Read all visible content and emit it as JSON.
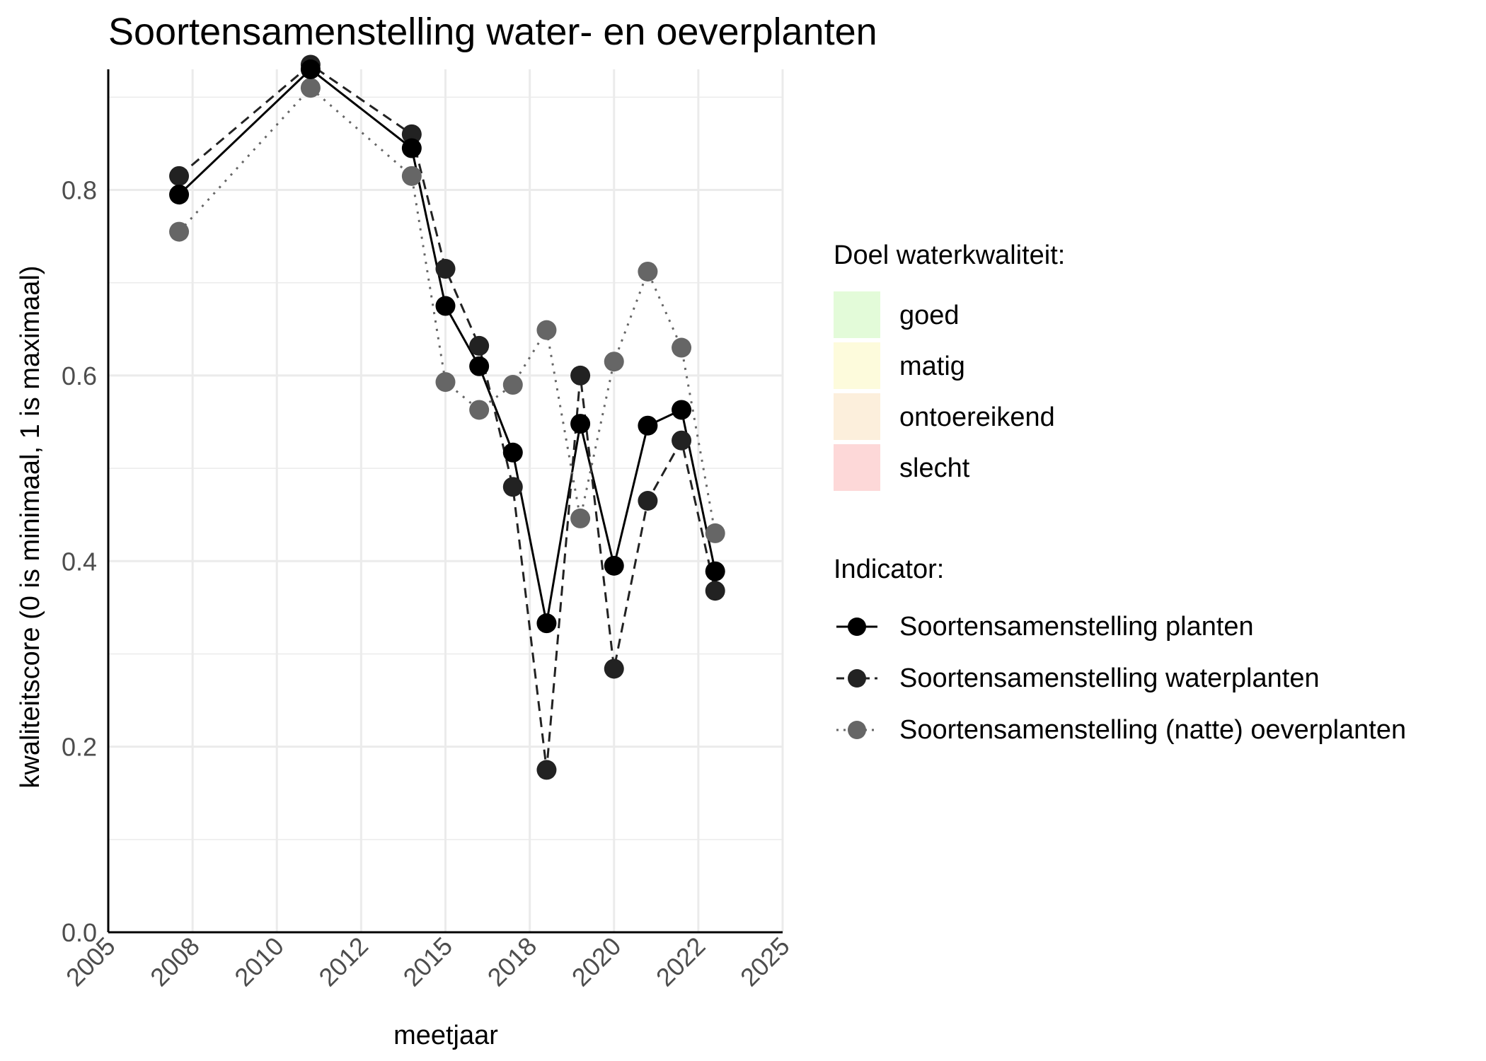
{
  "chart_data": {
    "type": "line",
    "title": "Soortensamenstelling water- en oeverplanten",
    "xlabel": "meetjaar",
    "ylabel": "kwaliteitscore (0 is minimaal, 1 is maximaal)",
    "xlim": [
      2005,
      2025
    ],
    "ylim": [
      0,
      0.93
    ],
    "x_ticks": [
      "2005",
      "2008",
      "2010",
      "2012",
      "2015",
      "2018",
      "2020",
      "2022",
      "2025"
    ],
    "y_ticks": [
      "0.0",
      "0.2",
      "0.4",
      "0.6",
      "0.8"
    ],
    "grid": true,
    "legend_position": "right",
    "target_legend": {
      "title": "Doel waterkwaliteit:",
      "items": [
        {
          "label": "goed",
          "color": "#e3fbd9"
        },
        {
          "label": "matig",
          "color": "#fdfbdc"
        },
        {
          "label": "ontoereikend",
          "color": "#fcefdc"
        },
        {
          "label": "slecht",
          "color": "#fdd8d8"
        }
      ]
    },
    "indicator_legend_title": "Indicator:",
    "series": [
      {
        "name": "Soortensamenstelling planten",
        "color": "#000000",
        "linestyle": "solid",
        "x": [
          2007.1,
          2011.0,
          2014.0,
          2015.0,
          2016.0,
          2017.0,
          2018.0,
          2019.0,
          2020.0,
          2021.0,
          2022.0,
          2023.0
        ],
        "y": [
          0.795,
          0.93,
          0.845,
          0.675,
          0.61,
          0.517,
          0.333,
          0.548,
          0.395,
          0.546,
          0.563,
          0.389
        ]
      },
      {
        "name": "Soortensamenstelling waterplanten",
        "color": "#222222",
        "linestyle": "dashed",
        "x": [
          2007.1,
          2011.0,
          2014.0,
          2015.0,
          2016.0,
          2017.0,
          2018.0,
          2019.0,
          2020.0,
          2021.0,
          2022.0,
          2023.0
        ],
        "y": [
          0.815,
          0.935,
          0.86,
          0.715,
          0.632,
          0.48,
          0.175,
          0.6,
          0.284,
          0.465,
          0.53,
          0.368
        ]
      },
      {
        "name": "Soortensamenstelling (natte) oeverplanten",
        "color": "#666666",
        "linestyle": "dotted",
        "x": [
          2007.1,
          2011.0,
          2014.0,
          2015.0,
          2016.0,
          2017.0,
          2018.0,
          2019.0,
          2020.0,
          2021.0,
          2022.0,
          2023.0
        ],
        "y": [
          0.755,
          0.91,
          0.815,
          0.593,
          0.563,
          0.59,
          0.649,
          0.446,
          0.615,
          0.712,
          0.63,
          0.43
        ]
      }
    ]
  }
}
